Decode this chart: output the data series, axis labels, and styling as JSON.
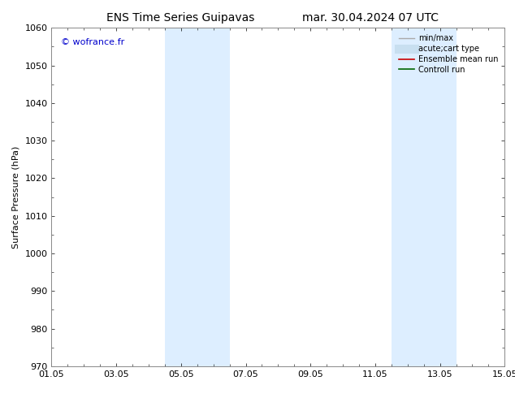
{
  "title_left": "ENS Time Series Guipavas",
  "title_right": "mar. 30.04.2024 07 UTC",
  "ylabel": "Surface Pressure (hPa)",
  "ylim": [
    970,
    1060
  ],
  "yticks": [
    970,
    980,
    990,
    1000,
    1010,
    1020,
    1030,
    1040,
    1050,
    1060
  ],
  "xtick_labels": [
    "01.05",
    "03.05",
    "05.05",
    "07.05",
    "09.05",
    "11.05",
    "13.05",
    "15.05"
  ],
  "xtick_positions": [
    0,
    2,
    4,
    6,
    8,
    10,
    12,
    14
  ],
  "xlim": [
    0,
    14
  ],
  "shaded_bands": [
    {
      "x_start": 3.5,
      "x_end": 4.5
    },
    {
      "x_start": 4.5,
      "x_end": 5.5
    },
    {
      "x_start": 10.5,
      "x_end": 11.5
    },
    {
      "x_start": 11.5,
      "x_end": 12.5
    }
  ],
  "shaded_color": "#ddeeff",
  "watermark": "© wofrance.fr",
  "watermark_color": "#0000cc",
  "legend_items": [
    {
      "label": "min/max",
      "color": "#aaaaaa",
      "lw": 1.0,
      "ls": "-"
    },
    {
      "label": "acute;cart type",
      "color": "#c8dff0",
      "lw": 8,
      "ls": "-"
    },
    {
      "label": "Ensemble mean run",
      "color": "#cc0000",
      "lw": 1.2,
      "ls": "-"
    },
    {
      "label": "Controll run",
      "color": "#006600",
      "lw": 1.2,
      "ls": "-"
    }
  ],
  "bg_color": "#ffffff",
  "spine_color": "#888888",
  "title_fontsize": 10,
  "axis_label_fontsize": 8,
  "tick_fontsize": 8,
  "watermark_fontsize": 8,
  "legend_fontsize": 7
}
